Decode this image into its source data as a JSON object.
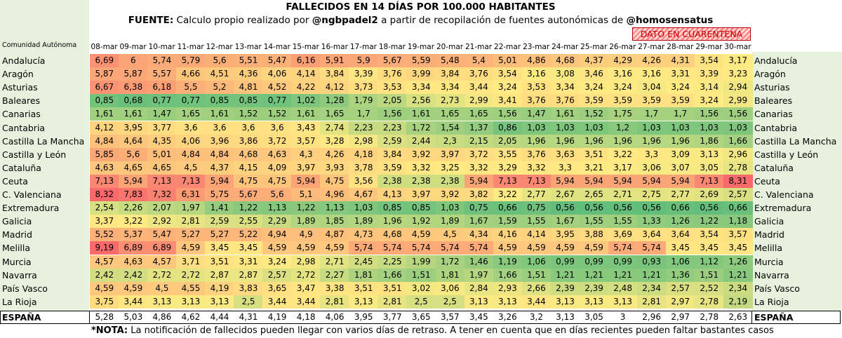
{
  "title": "FALLECIDOS EN 14 DÍAS POR 100.000 HABITANTES",
  "source": {
    "prefix": "FUENTE:",
    "text1": "Calculo propio realizado por",
    "author": "@ngbpadel2",
    "text2": "a partir de recopilación de fuentes autonómicas de",
    "org": "@homosensatus"
  },
  "quarantine_label": "DATO EN CUARENTENA",
  "region_header": "Comunidad Autónoma",
  "note": {
    "prefix": "*NOTA:",
    "text": "La notificación de fallecidos pueden llegar con varios días de retraso. A tener en cuenta que en días recientes pueden faltar bastantes casos"
  },
  "chart_data": {
    "type": "heatmap",
    "title": "FALLECIDOS EN 14 DÍAS POR 100.000 HABITANTES",
    "x": [
      "08-mar",
      "09-mar",
      "10-mar",
      "11-mar",
      "12-mar",
      "13-mar",
      "14-mar",
      "15-mar",
      "16-mar",
      "17-mar",
      "18-mar",
      "19-mar",
      "20-mar",
      "21-mar",
      "22-mar",
      "23-mar",
      "24-mar",
      "25-mar",
      "26-mar",
      "27-mar",
      "28-mar",
      "29-mar",
      "30-mar"
    ],
    "color_scale": {
      "min_color": "#63be7b",
      "mid_color": "#ffeb84",
      "max_color": "#f8696b",
      "low": 0.56,
      "mid": 3.2,
      "high": 8.31
    },
    "rows": [
      {
        "name": "Andalucía",
        "values": [
          "6,69",
          "6",
          "5,74",
          "5,79",
          "5,6",
          "5,51",
          "5,47",
          "6,16",
          "5,91",
          "5,9",
          "5,67",
          "5,59",
          "5,48",
          "5,4",
          "5,01",
          "4,86",
          "4,68",
          "4,37",
          "4,29",
          "4,26",
          "4,31",
          "3,54",
          "3,17"
        ]
      },
      {
        "name": "Aragón",
        "values": [
          "5,87",
          "5,87",
          "5,57",
          "4,66",
          "4,51",
          "4,36",
          "4,06",
          "4,14",
          "3,84",
          "3,39",
          "3,76",
          "3,99",
          "3,84",
          "3,76",
          "3,54",
          "3,16",
          "3,08",
          "3,46",
          "3,16",
          "3,16",
          "3,31",
          "3,39",
          "3,23"
        ]
      },
      {
        "name": "Asturias",
        "values": [
          "6,67",
          "6,38",
          "6,18",
          "5,5",
          "5,2",
          "4,81",
          "4,52",
          "4,22",
          "4,12",
          "3,73",
          "3,53",
          "3,34",
          "3,34",
          "3,44",
          "3,24",
          "3,53",
          "3,34",
          "3,24",
          "3,24",
          "3,04",
          "3,24",
          "3,14",
          "2,94"
        ]
      },
      {
        "name": "Baleares",
        "values": [
          "0,85",
          "0,68",
          "0,77",
          "0,77",
          "0,85",
          "0,85",
          "0,77",
          "1,02",
          "1,28",
          "1,79",
          "2,05",
          "2,56",
          "2,73",
          "2,99",
          "3,41",
          "3,76",
          "3,76",
          "3,59",
          "3,59",
          "3,59",
          "3,59",
          "3,24",
          "2,99"
        ]
      },
      {
        "name": "Canarias",
        "values": [
          "1,61",
          "1,61",
          "1,47",
          "1,65",
          "1,61",
          "1,52",
          "1,52",
          "1,61",
          "1,65",
          "1,7",
          "1,56",
          "1,61",
          "1,65",
          "1,65",
          "1,56",
          "1,47",
          "1,61",
          "1,52",
          "1,75",
          "1,7",
          "1,7",
          "1,56",
          "1,56"
        ]
      },
      {
        "name": "Cantabria",
        "values": [
          "4,12",
          "3,95",
          "3,77",
          "3,6",
          "3,6",
          "3,6",
          "3,6",
          "3,43",
          "2,74",
          "2,23",
          "2,23",
          "1,72",
          "1,54",
          "1,37",
          "0,86",
          "1,03",
          "1,03",
          "1,03",
          "1,2",
          "1,03",
          "1,03",
          "1,03",
          "1,03"
        ]
      },
      {
        "name": "Castilla La Mancha",
        "values": [
          "4,84",
          "4,64",
          "4,35",
          "4,06",
          "3,96",
          "3,86",
          "3,72",
          "3,57",
          "3,28",
          "2,98",
          "2,59",
          "2,44",
          "2,3",
          "2,15",
          "2,05",
          "1,96",
          "1,96",
          "1,96",
          "1,96",
          "1,96",
          "1,96",
          "1,86",
          "1,66"
        ]
      },
      {
        "name": "Castilla y León",
        "values": [
          "5,85",
          "5,6",
          "5,01",
          "4,84",
          "4,84",
          "4,68",
          "4,63",
          "4,3",
          "4,26",
          "4,18",
          "3,84",
          "3,92",
          "3,97",
          "3,72",
          "3,55",
          "3,76",
          "3,63",
          "3,51",
          "3,22",
          "3,3",
          "3,09",
          "3,13",
          "2,96"
        ]
      },
      {
        "name": "Cataluña",
        "values": [
          "4,63",
          "4,65",
          "4,65",
          "4,5",
          "4,37",
          "4,15",
          "4,09",
          "3,97",
          "3,93",
          "3,78",
          "3,59",
          "3,32",
          "3,25",
          "3,32",
          "3,29",
          "3,32",
          "3,3",
          "3,21",
          "3,17",
          "3,06",
          "3,07",
          "3,05",
          "2,78"
        ]
      },
      {
        "name": "Ceuta",
        "values": [
          "7,13",
          "5,94",
          "7,13",
          "7,13",
          "5,94",
          "4,75",
          "4,75",
          "5,94",
          "4,75",
          "3,56",
          "2,38",
          "2,38",
          "2,38",
          "5,94",
          "7,13",
          "7,13",
          "5,94",
          "5,94",
          "5,94",
          "5,94",
          "5,94",
          "7,13",
          "8,31"
        ]
      },
      {
        "name": "C. Valenciana",
        "values": [
          "8,32",
          "7,83",
          "7,32",
          "6,31",
          "5,75",
          "5,67",
          "5,6",
          "5,1",
          "4,96",
          "4,67",
          "4,13",
          "3,97",
          "3,92",
          "3,82",
          "3,22",
          "2,77",
          "2,67",
          "2,65",
          "2,71",
          "2,75",
          "2,77",
          "2,69",
          "2,57"
        ]
      },
      {
        "name": "Extremadura",
        "values": [
          "2,54",
          "2,26",
          "2,07",
          "1,97",
          "1,41",
          "1,22",
          "1,13",
          "1,22",
          "1,13",
          "1,03",
          "0,85",
          "0,85",
          "1,03",
          "0,75",
          "0,66",
          "0,75",
          "0,56",
          "0,56",
          "0,56",
          "0,56",
          "0,66",
          "0,56",
          "0,66"
        ]
      },
      {
        "name": "Galicia",
        "values": [
          "3,37",
          "3,22",
          "2,92",
          "2,81",
          "2,59",
          "2,55",
          "2,29",
          "1,89",
          "1,85",
          "1,89",
          "1,96",
          "1,92",
          "1,89",
          "1,67",
          "1,59",
          "1,55",
          "1,67",
          "1,55",
          "1,55",
          "1,33",
          "1,26",
          "1,22",
          "1,18"
        ]
      },
      {
        "name": "Madrid",
        "values": [
          "5,52",
          "5,37",
          "5,47",
          "5,27",
          "5,27",
          "5,22",
          "4,94",
          "4,9",
          "4,87",
          "4,73",
          "4,68",
          "4,59",
          "4,5",
          "4,34",
          "4,16",
          "4,14",
          "3,95",
          "3,88",
          "3,69",
          "3,64",
          "3,64",
          "3,54",
          "3,57"
        ]
      },
      {
        "name": "Melilla",
        "values": [
          "9,19",
          "6,89",
          "6,89",
          "4,59",
          "3,45",
          "3,45",
          "4,59",
          "4,59",
          "4,59",
          "5,74",
          "5,74",
          "5,74",
          "5,74",
          "5,74",
          "4,59",
          "4,59",
          "4,59",
          "4,59",
          "5,74",
          "5,74",
          "3,45",
          "3,45",
          "3,45"
        ]
      },
      {
        "name": "Murcia",
        "values": [
          "4,57",
          "4,63",
          "4,57",
          "3,71",
          "3,51",
          "3,31",
          "3,24",
          "2,98",
          "2,71",
          "2,45",
          "2,25",
          "1,99",
          "1,72",
          "1,46",
          "1,19",
          "1,06",
          "0,99",
          "0,99",
          "0,99",
          "0,93",
          "1,06",
          "1,12",
          "1,26"
        ]
      },
      {
        "name": "Navarra",
        "values": [
          "2,42",
          "2,42",
          "2,72",
          "2,72",
          "2,87",
          "2,87",
          "2,57",
          "2,72",
          "2,27",
          "1,81",
          "1,66",
          "1,51",
          "1,81",
          "1,97",
          "1,66",
          "1,51",
          "1,21",
          "1,21",
          "1,21",
          "1,21",
          "1,36",
          "1,51",
          "1,21"
        ]
      },
      {
        "name": "País Vasco",
        "values": [
          "4,59",
          "4,59",
          "4,5",
          "4,55",
          "4,19",
          "3,83",
          "3,65",
          "3,47",
          "3,38",
          "3,51",
          "3,51",
          "3,02",
          "3,06",
          "2,84",
          "2,93",
          "2,66",
          "2,39",
          "2,39",
          "2,48",
          "2,34",
          "2,57",
          "2,52",
          "2,34"
        ]
      },
      {
        "name": "La Rioja",
        "values": [
          "3,75",
          "3,44",
          "3,13",
          "3,13",
          "3,13",
          "2,5",
          "3,44",
          "3,44",
          "2,81",
          "3,13",
          "2,81",
          "2,5",
          "2,5",
          "3,13",
          "3,13",
          "3,44",
          "3,13",
          "3,13",
          "3,13",
          "2,81",
          "2,97",
          "2,78",
          "2,19"
        ]
      },
      {
        "name": "ESPAÑA",
        "values": [
          "5,28",
          "5,03",
          "4,86",
          "4,62",
          "4,44",
          "4,31",
          "4,19",
          "4,18",
          "4,06",
          "3,95",
          "3,77",
          "3,65",
          "3,57",
          "3,45",
          "3,26",
          "3,2",
          "3,13",
          "3,05",
          "3",
          "2,96",
          "2,97",
          "2,78",
          "2,63"
        ]
      }
    ]
  }
}
